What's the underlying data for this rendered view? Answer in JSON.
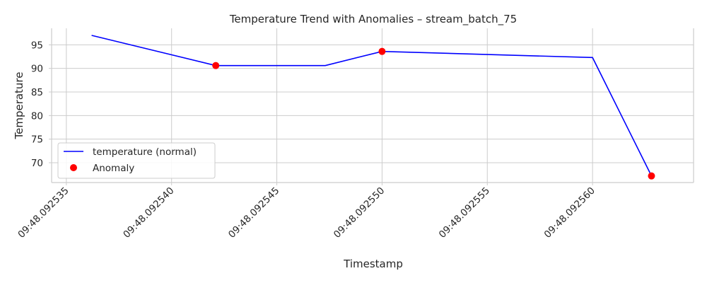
{
  "chart_data": {
    "type": "line",
    "title": "Temperature Trend with Anomalies – stream_batch_75",
    "xlabel": "Timestamp",
    "ylabel": "Temperature",
    "x_unit": "microseconds after 09:48.092535",
    "xlim": [
      -0.7,
      29.8
    ],
    "ylim": [
      65.8,
      98.5
    ],
    "x_ticks": [
      0,
      5,
      10,
      15,
      20,
      25
    ],
    "x_tick_labels": [
      "09:48.092535",
      "09:48.092540",
      "09:48.092545",
      "09:48.092550",
      "09:48.092555",
      "09:48.092560"
    ],
    "y_ticks": [
      70,
      75,
      80,
      85,
      90,
      95
    ],
    "y_tick_labels": [
      "70",
      "75",
      "80",
      "85",
      "90",
      "95"
    ],
    "grid": true,
    "legend_position": "lower-left",
    "series": [
      {
        "name": "temperature (normal)",
        "kind": "line",
        "color": "#0000ff",
        "x": [
          1.2,
          7.1,
          12.3,
          15.0,
          25.0,
          27.8
        ],
        "y": [
          97.0,
          90.6,
          90.6,
          93.6,
          92.3,
          67.2
        ]
      },
      {
        "name": "Anomaly",
        "kind": "scatter",
        "color": "#ff0000",
        "x": [
          7.1,
          15.0,
          27.8
        ],
        "y": [
          90.6,
          93.6,
          67.2
        ]
      }
    ]
  }
}
